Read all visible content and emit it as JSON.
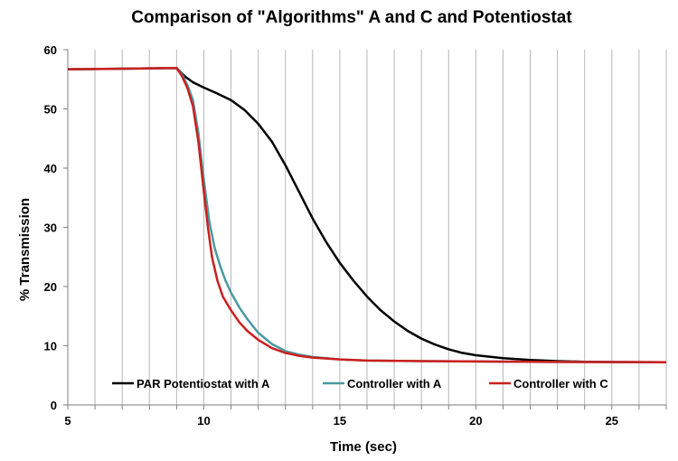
{
  "chart_data": {
    "type": "line",
    "title": "Comparison of \"Algorithms\" A and C and Potentiostat",
    "xlabel": "Time (sec)",
    "ylabel": "% Transmission",
    "xlim": [
      5,
      27
    ],
    "ylim": [
      0,
      60
    ],
    "xticks": [
      5,
      10,
      15,
      20,
      25
    ],
    "yticks": [
      0,
      10,
      20,
      30,
      40,
      50,
      60
    ],
    "grid": "vertical",
    "legend_position": "bottom",
    "series": [
      {
        "name": "PAR Potentiostat with A",
        "color": "#000000",
        "points": [
          [
            5,
            56.7
          ],
          [
            7,
            56.8
          ],
          [
            9.0,
            56.9
          ],
          [
            9.3,
            55.5
          ],
          [
            9.6,
            54.5
          ],
          [
            10,
            53.6
          ],
          [
            10.5,
            52.6
          ],
          [
            11,
            51.5
          ],
          [
            11.5,
            49.8
          ],
          [
            12,
            47.5
          ],
          [
            12.5,
            44.5
          ],
          [
            13,
            40.5
          ],
          [
            13.5,
            36
          ],
          [
            14,
            31.5
          ],
          [
            14.5,
            27.5
          ],
          [
            15,
            24
          ],
          [
            15.5,
            21
          ],
          [
            16,
            18.3
          ],
          [
            16.5,
            16
          ],
          [
            17,
            14.1
          ],
          [
            17.5,
            12.5
          ],
          [
            18,
            11.2
          ],
          [
            18.5,
            10.2
          ],
          [
            19,
            9.4
          ],
          [
            19.5,
            8.8
          ],
          [
            20,
            8.4
          ],
          [
            21,
            7.9
          ],
          [
            22,
            7.6
          ],
          [
            23,
            7.4
          ],
          [
            24,
            7.3
          ],
          [
            25,
            7.25
          ],
          [
            27,
            7.2
          ]
        ]
      },
      {
        "name": "Controller with A",
        "color": "#4a9aa0",
        "points": [
          [
            5,
            56.7
          ],
          [
            7,
            56.8
          ],
          [
            9.0,
            56.9
          ],
          [
            9.2,
            55.8
          ],
          [
            9.4,
            54
          ],
          [
            9.6,
            51.5
          ],
          [
            9.8,
            46
          ],
          [
            10,
            38
          ],
          [
            10.2,
            31
          ],
          [
            10.4,
            26.5
          ],
          [
            10.6,
            23.5
          ],
          [
            10.8,
            21
          ],
          [
            11,
            19
          ],
          [
            11.3,
            16.5
          ],
          [
            11.6,
            14.5
          ],
          [
            12,
            12.2
          ],
          [
            12.5,
            10.3
          ],
          [
            13,
            9.1
          ],
          [
            13.5,
            8.5
          ],
          [
            14,
            8.1
          ],
          [
            15,
            7.7
          ],
          [
            16,
            7.5
          ],
          [
            18,
            7.4
          ],
          [
            20,
            7.35
          ],
          [
            22,
            7.3
          ],
          [
            24,
            7.25
          ],
          [
            27,
            7.2
          ]
        ]
      },
      {
        "name": "Controller with C",
        "color": "#cc1f1f",
        "points": [
          [
            5,
            56.7
          ],
          [
            7,
            56.8
          ],
          [
            9.0,
            56.9
          ],
          [
            9.2,
            55.5
          ],
          [
            9.4,
            53.5
          ],
          [
            9.6,
            50.5
          ],
          [
            9.8,
            44.5
          ],
          [
            10,
            36
          ],
          [
            10.15,
            30
          ],
          [
            10.3,
            25
          ],
          [
            10.5,
            21
          ],
          [
            10.7,
            18.3
          ],
          [
            11,
            16
          ],
          [
            11.3,
            14
          ],
          [
            11.6,
            12.5
          ],
          [
            12,
            11
          ],
          [
            12.5,
            9.6
          ],
          [
            13,
            8.8
          ],
          [
            13.5,
            8.3
          ],
          [
            14,
            8
          ],
          [
            15,
            7.7
          ],
          [
            16,
            7.5
          ],
          [
            18,
            7.4
          ],
          [
            20,
            7.35
          ],
          [
            22,
            7.3
          ],
          [
            24,
            7.25
          ],
          [
            27,
            7.2
          ]
        ]
      }
    ]
  }
}
